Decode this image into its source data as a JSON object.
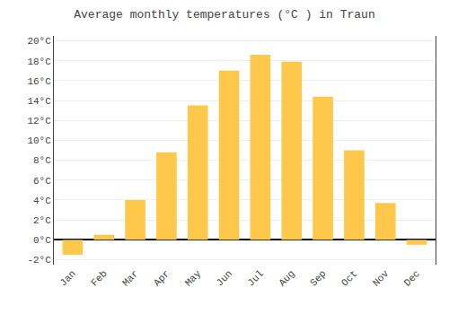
{
  "chart_data": {
    "type": "bar",
    "title": "Average monthly temperatures (°C ) in Traun",
    "categories": [
      "Jan",
      "Feb",
      "Mar",
      "Apr",
      "May",
      "Jun",
      "Jul",
      "Aug",
      "Sep",
      "Oct",
      "Nov",
      "Dec"
    ],
    "values": [
      -1.5,
      0.5,
      4.0,
      8.8,
      13.5,
      17.0,
      18.6,
      17.9,
      14.4,
      9.0,
      3.7,
      -0.5
    ],
    "color": "#FFC84A",
    "ylim": [
      -2.5,
      20.5
    ],
    "yticks": [
      {
        "value": -2,
        "label": "-2°C"
      },
      {
        "value": 0,
        "label": "0°C"
      },
      {
        "value": 2,
        "label": "2°C"
      },
      {
        "value": 4,
        "label": "4°C"
      },
      {
        "value": 6,
        "label": "6°C"
      },
      {
        "value": 8,
        "label": "8°C"
      },
      {
        "value": 10,
        "label": "10°C"
      },
      {
        "value": 12,
        "label": "12°C"
      },
      {
        "value": 14,
        "label": "14°C"
      },
      {
        "value": 16,
        "label": "16°C"
      },
      {
        "value": 18,
        "label": "18°C"
      },
      {
        "value": 20,
        "label": "20°C"
      }
    ],
    "grid": true
  }
}
